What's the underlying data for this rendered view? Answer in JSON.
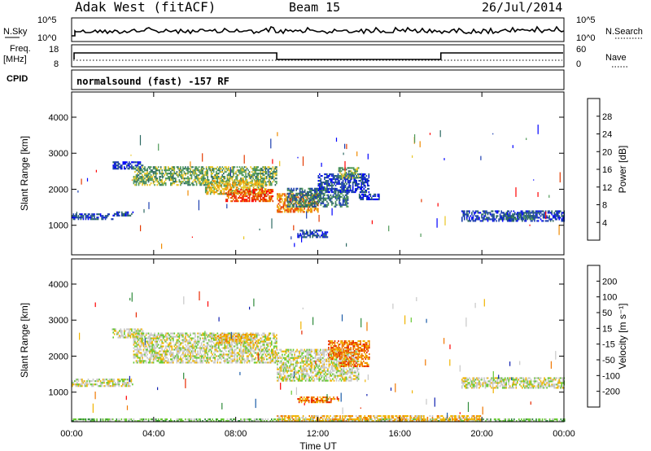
{
  "header": {
    "station": "Adak West (fitACF)",
    "beam": "Beam 15",
    "date": "26/Jul/2014"
  },
  "top_panels": {
    "nsky_label": "N.Sky",
    "nsky_ticks": [
      "10^5",
      "10^0"
    ],
    "nsearch_label": "N.Search",
    "nsearch_ticks": [
      "10^5",
      "10^0"
    ],
    "freq_label_1": "Freq.",
    "freq_label_2": "[MHz]",
    "freq_ticks": [
      "18",
      "8"
    ],
    "nave_label": "Nave",
    "nave_ticks": [
      "60",
      "0"
    ],
    "cpid_label": "CPID",
    "cpid_text": "normalsound (fast) -157 RF"
  },
  "chart_data": [
    {
      "type": "heatmap",
      "title": "",
      "ylabel": "Slant Range [km]",
      "xlabel": "Time UT",
      "yticks": [
        "1000",
        "2000",
        "3000",
        "4000"
      ],
      "ylim": [
        180,
        4700
      ],
      "xticks": [
        "00:00",
        "04:00",
        "08:00",
        "12:00",
        "16:00",
        "20:00",
        "00:00"
      ],
      "xlim_hours": [
        0,
        24
      ],
      "colorbar": {
        "label": "Power [dB]",
        "ticks": [
          "4",
          "8",
          "12",
          "16",
          "20",
          "24",
          "28"
        ],
        "colors": [
          "#0000ff",
          "#1c3fb0",
          "#2e6a63",
          "#4f9a58",
          "#e9c522",
          "#f08a00",
          "#e43a00",
          "#ff0000"
        ]
      },
      "regions": [
        {
          "t0": 0.0,
          "t1": 2.0,
          "r0": 1150,
          "r1": 1300,
          "level": 1
        },
        {
          "t0": 2.0,
          "t1": 3.0,
          "r0": 1250,
          "r1": 1350,
          "level": 1
        },
        {
          "t0": 2.0,
          "t1": 3.5,
          "r0": 2550,
          "r1": 2750,
          "level": 1
        },
        {
          "t0": 3.0,
          "t1": 10.0,
          "r0": 2100,
          "r1": 2600,
          "level": 3
        },
        {
          "t0": 6.5,
          "t1": 9.5,
          "r0": 1850,
          "r1": 2250,
          "level": 4
        },
        {
          "t0": 7.5,
          "t1": 9.8,
          "r0": 1650,
          "r1": 2000,
          "level": 6
        },
        {
          "t0": 10.0,
          "t1": 12.0,
          "r0": 1350,
          "r1": 1850,
          "level": 5
        },
        {
          "t0": 10.5,
          "t1": 13.5,
          "r0": 1500,
          "r1": 2000,
          "level": 2
        },
        {
          "t0": 12.0,
          "t1": 14.5,
          "r0": 1900,
          "r1": 2400,
          "level": 1
        },
        {
          "t0": 13.0,
          "t1": 14.0,
          "r0": 2300,
          "r1": 2600,
          "level": 3
        },
        {
          "t0": 14.0,
          "t1": 15.0,
          "r0": 1700,
          "r1": 1850,
          "level": 1
        },
        {
          "t0": 11.0,
          "t1": 12.5,
          "r0": 650,
          "r1": 850,
          "level": 1
        },
        {
          "t0": 19.0,
          "t1": 24.0,
          "r0": 1100,
          "r1": 1400,
          "level": 1
        },
        {
          "t0": 21.0,
          "t1": 22.5,
          "r0": 1150,
          "r1": 1300,
          "level": 2
        }
      ]
    },
    {
      "type": "heatmap",
      "title": "",
      "ylabel": "Slant Range [km]",
      "xlabel": "Time UT",
      "yticks": [
        "1000",
        "2000",
        "3000",
        "4000"
      ],
      "ylim": [
        180,
        4700
      ],
      "xticks": [
        "00:00",
        "04:00",
        "08:00",
        "12:00",
        "16:00",
        "20:00",
        "00:00"
      ],
      "xlim_hours": [
        0,
        24
      ],
      "colorbar": {
        "label": "Velocity [m s⁻¹]",
        "ticks": [
          "200",
          "100",
          "50",
          "15",
          "-15",
          "-50",
          "-100",
          "-200"
        ],
        "colors": [
          "#1020b0",
          "#1b5ca8",
          "#2e8a3a",
          "#66c832",
          "#c8c8c8",
          "#f0b400",
          "#f07800",
          "#e82800",
          "#ff0000"
        ]
      },
      "regions": [
        {
          "t0": 0.0,
          "t1": 3.0,
          "r0": 1150,
          "r1": 1350,
          "level": 4
        },
        {
          "t0": 2.0,
          "t1": 3.5,
          "r0": 2500,
          "r1": 2750,
          "level": 4
        },
        {
          "t0": 3.0,
          "t1": 10.0,
          "r0": 1800,
          "r1": 2650,
          "level": 4
        },
        {
          "t0": 7.0,
          "t1": 9.0,
          "r0": 2350,
          "r1": 2600,
          "level": 5
        },
        {
          "t0": 10.0,
          "t1": 14.0,
          "r0": 1300,
          "r1": 2200,
          "level": 4
        },
        {
          "t0": 12.5,
          "t1": 14.5,
          "r0": 1900,
          "r1": 2400,
          "level": 6
        },
        {
          "t0": 13.0,
          "t1": 14.5,
          "r0": 1700,
          "r1": 1850,
          "level": 6
        },
        {
          "t0": 11.0,
          "t1": 13.0,
          "r0": 700,
          "r1": 850,
          "level": 6
        },
        {
          "t0": 19.0,
          "t1": 24.0,
          "r0": 1100,
          "r1": 1400,
          "level": 4
        },
        {
          "t0": 0.0,
          "t1": 24.0,
          "r0": 180,
          "r1": 260,
          "level": 3
        },
        {
          "t0": 10.0,
          "t1": 20.0,
          "r0": 180,
          "r1": 320,
          "level": 5
        }
      ]
    }
  ]
}
